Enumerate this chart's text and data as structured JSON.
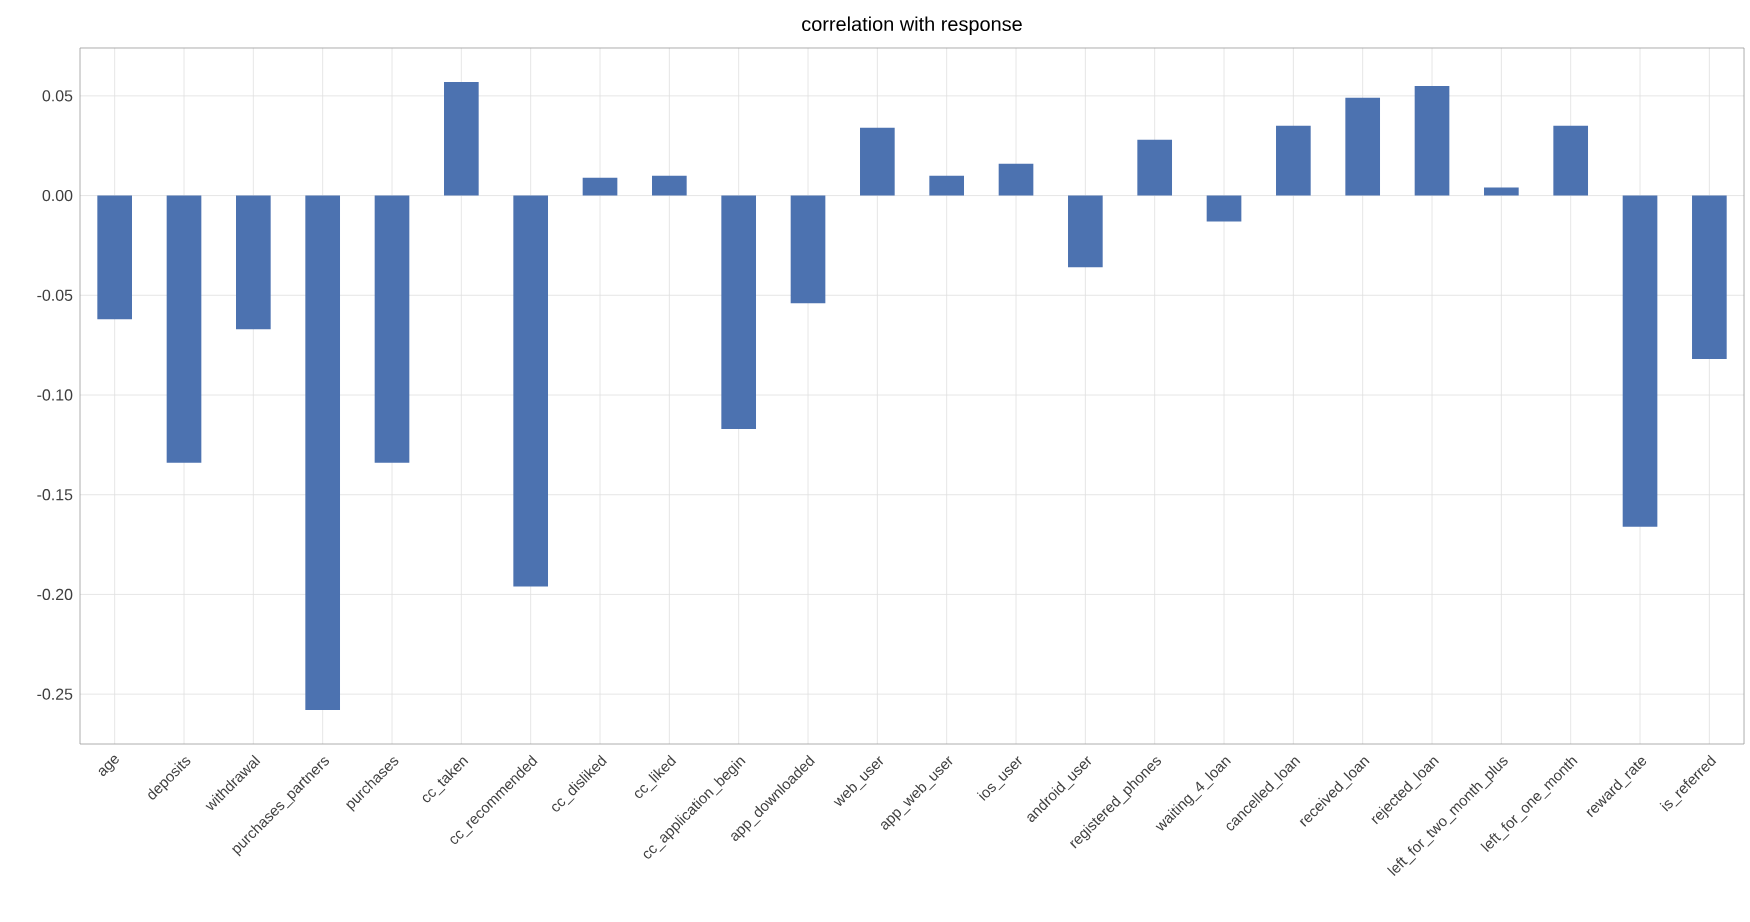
{
  "chart_data": {
    "type": "bar",
    "title": "correlation with response",
    "categories": [
      "age",
      "deposits",
      "withdrawal",
      "purchases_partners",
      "purchases",
      "cc_taken",
      "cc_recommended",
      "cc_disliked",
      "cc_liked",
      "cc_application_begin",
      "app_downloaded",
      "web_user",
      "app_web_user",
      "ios_user",
      "android_user",
      "registered_phones",
      "waiting_4_loan",
      "cancelled_loan",
      "received_loan",
      "rejected_loan",
      "left_for_two_month_plus",
      "left_for_one_month",
      "reward_rate",
      "is_referred"
    ],
    "values": [
      -0.062,
      -0.134,
      -0.067,
      -0.258,
      -0.134,
      0.057,
      -0.196,
      0.009,
      0.01,
      -0.117,
      -0.054,
      0.034,
      0.01,
      0.016,
      -0.036,
      0.028,
      -0.013,
      0.035,
      0.049,
      0.055,
      0.004,
      0.035,
      -0.166,
      -0.082
    ],
    "color": "#4c72b0",
    "ylim": [
      -0.275,
      0.074
    ],
    "yticks": [
      {
        "value": -0.25,
        "label": "-0.25"
      },
      {
        "value": -0.2,
        "label": "-0.20"
      },
      {
        "value": -0.15,
        "label": "-0.15"
      },
      {
        "value": -0.1,
        "label": "-0.10"
      },
      {
        "value": -0.05,
        "label": "-0.05"
      },
      {
        "value": 0,
        "label": "0.00"
      },
      {
        "value": 0.05,
        "label": "0.05"
      }
    ],
    "grid": true
  }
}
